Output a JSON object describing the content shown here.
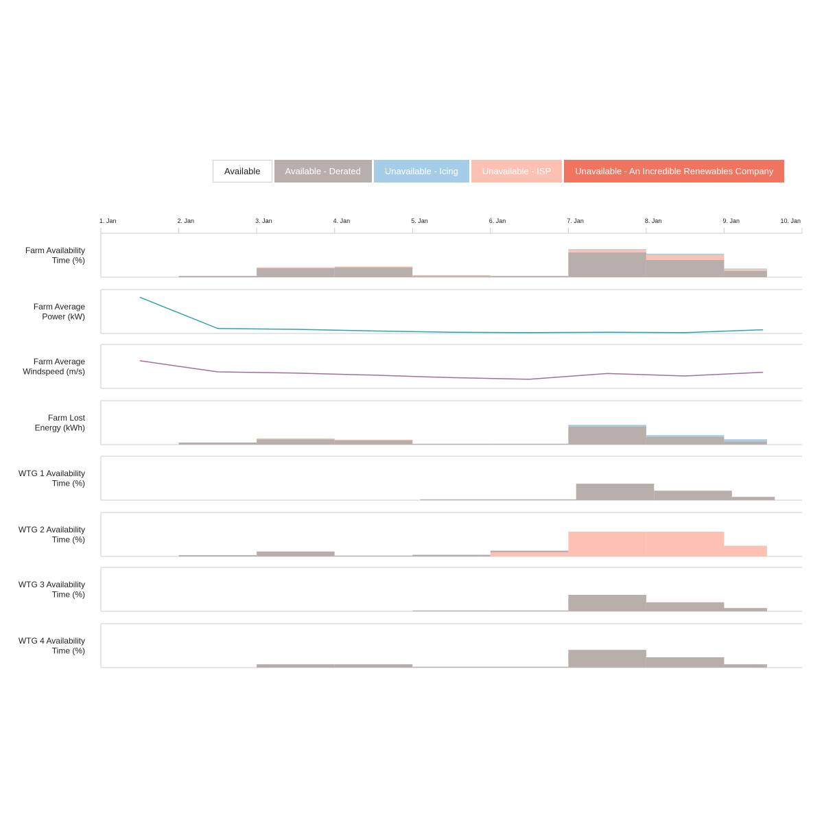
{
  "legend": [
    {
      "key": "available",
      "label": "Available",
      "color": "#ffffff"
    },
    {
      "key": "derated",
      "label": "Available - Derated",
      "color": "#b8aeab"
    },
    {
      "key": "icing",
      "label": "Unavailable - Icing",
      "color": "#a6cde8"
    },
    {
      "key": "isp",
      "label": "Unavailable - ISP",
      "color": "#fdc1b3"
    },
    {
      "key": "company",
      "label": "Unavailable - An Incredible Renewables Company",
      "color": "#f07561"
    }
  ],
  "chart_data": {
    "type": "area",
    "x_axis": {
      "ticks": [
        "1. Jan",
        "2. Jan",
        "3. Jan",
        "4. Jan",
        "5. Jan",
        "6. Jan",
        "7. Jan",
        "8. Jan",
        "9. Jan",
        "10. Jan"
      ],
      "range_days": [
        1,
        10
      ]
    },
    "rows": [
      {
        "label": [
          "Farm Availability",
          "Time (%)"
        ],
        "type": "step",
        "ylim": [
          0,
          100
        ],
        "series": [
          {
            "key": "derated",
            "segments": [
              [
                2,
                3,
                3
              ],
              [
                3,
                4,
                22
              ],
              [
                4,
                5,
                24
              ],
              [
                5,
                6,
                3
              ],
              [
                6,
                7,
                3
              ],
              [
                7,
                8,
                60
              ],
              [
                8,
                9,
                42
              ],
              [
                9,
                9.55,
                15
              ]
            ]
          },
          {
            "key": "isp",
            "segments": [
              [
                3,
                4,
                2
              ],
              [
                4,
                5,
                2
              ],
              [
                5,
                6,
                2
              ],
              [
                7,
                8,
                6
              ],
              [
                8,
                9,
                12
              ],
              [
                9,
                9.55,
                4
              ]
            ]
          },
          {
            "key": "icing",
            "segments": [
              [
                7,
                8,
                2
              ],
              [
                8,
                9,
                3
              ],
              [
                9,
                9.55,
                2
              ]
            ]
          }
        ]
      },
      {
        "label": [
          "Farm Average",
          "Power (kW)"
        ],
        "type": "line",
        "ylim": [
          0,
          100
        ],
        "color": "#2ea3b3",
        "points": [
          [
            1.5,
            88
          ],
          [
            2.5,
            12
          ],
          [
            3.5,
            10
          ],
          [
            4.5,
            6
          ],
          [
            5.5,
            3
          ],
          [
            6.5,
            2
          ],
          [
            7.5,
            3
          ],
          [
            8.5,
            2
          ],
          [
            9.5,
            9
          ]
        ]
      },
      {
        "label": [
          "Farm Average",
          "Windspeed (m/s)"
        ],
        "type": "line",
        "ylim": [
          0,
          100
        ],
        "color": "#a56d9c",
        "points": [
          [
            1.5,
            67
          ],
          [
            2.5,
            40
          ],
          [
            3.5,
            37
          ],
          [
            4.5,
            32
          ],
          [
            5.5,
            26
          ],
          [
            6.5,
            22
          ],
          [
            7.5,
            36
          ],
          [
            8.5,
            30
          ],
          [
            9.5,
            39
          ]
        ]
      },
      {
        "label": [
          "Farm Lost",
          "Energy (kWh)"
        ],
        "type": "step",
        "ylim": [
          0,
          100
        ],
        "series": [
          {
            "key": "derated",
            "segments": [
              [
                2,
                3,
                5
              ],
              [
                3,
                4,
                13
              ],
              [
                4,
                5,
                11
              ],
              [
                5,
                6,
                2
              ],
              [
                6,
                7,
                2
              ],
              [
                7,
                8,
                44
              ],
              [
                8,
                9,
                19
              ],
              [
                9,
                9.55,
                8
              ]
            ]
          },
          {
            "key": "isp",
            "segments": [
              [
                3,
                4,
                2
              ],
              [
                4,
                5,
                1
              ]
            ]
          },
          {
            "key": "icing",
            "segments": [
              [
                7,
                8,
                4
              ],
              [
                8,
                9,
                4
              ],
              [
                9,
                9.55,
                5
              ]
            ]
          }
        ]
      },
      {
        "label": [
          "WTG 1 Availability",
          "Time (%)"
        ],
        "type": "step",
        "ylim": [
          0,
          100
        ],
        "series": [
          {
            "key": "derated",
            "segments": [
              [
                5.1,
                6.1,
                2
              ],
              [
                6.1,
                7.1,
                2
              ],
              [
                7.1,
                8.1,
                40
              ],
              [
                8.1,
                9.1,
                23
              ],
              [
                9.1,
                9.65,
                8
              ]
            ]
          }
        ]
      },
      {
        "label": [
          "WTG 2 Availability",
          "Time (%)"
        ],
        "type": "step",
        "ylim": [
          0,
          100
        ],
        "series": [
          {
            "key": "isp",
            "segments": [
              [
                6,
                7,
                10
              ],
              [
                7,
                8,
                60
              ],
              [
                8,
                9,
                60
              ],
              [
                9,
                9.55,
                26
              ]
            ]
          },
          {
            "key": "derated",
            "segments": [
              [
                2,
                3,
                3
              ],
              [
                3,
                4,
                12
              ],
              [
                4,
                5,
                2
              ],
              [
                5,
                6,
                4
              ],
              [
                6,
                7,
                4
              ]
            ]
          }
        ]
      },
      {
        "label": [
          "WTG 3 Availability",
          "Time (%)"
        ],
        "type": "step",
        "ylim": [
          0,
          100
        ],
        "series": [
          {
            "key": "derated",
            "segments": [
              [
                5,
                6,
                2
              ],
              [
                6,
                7,
                2
              ],
              [
                7,
                8,
                40
              ],
              [
                8,
                9,
                22
              ],
              [
                9,
                9.55,
                8
              ]
            ]
          }
        ]
      },
      {
        "label": [
          "WTG 4 Availability",
          "Time (%)"
        ],
        "type": "step",
        "ylim": [
          0,
          100
        ],
        "series": [
          {
            "key": "derated",
            "segments": [
              [
                3,
                4,
                8
              ],
              [
                4,
                5,
                8
              ],
              [
                5,
                6,
                2
              ],
              [
                6,
                7,
                2
              ],
              [
                7,
                8,
                43
              ],
              [
                8,
                9,
                25
              ],
              [
                9,
                9.55,
                8
              ]
            ]
          }
        ]
      }
    ]
  }
}
